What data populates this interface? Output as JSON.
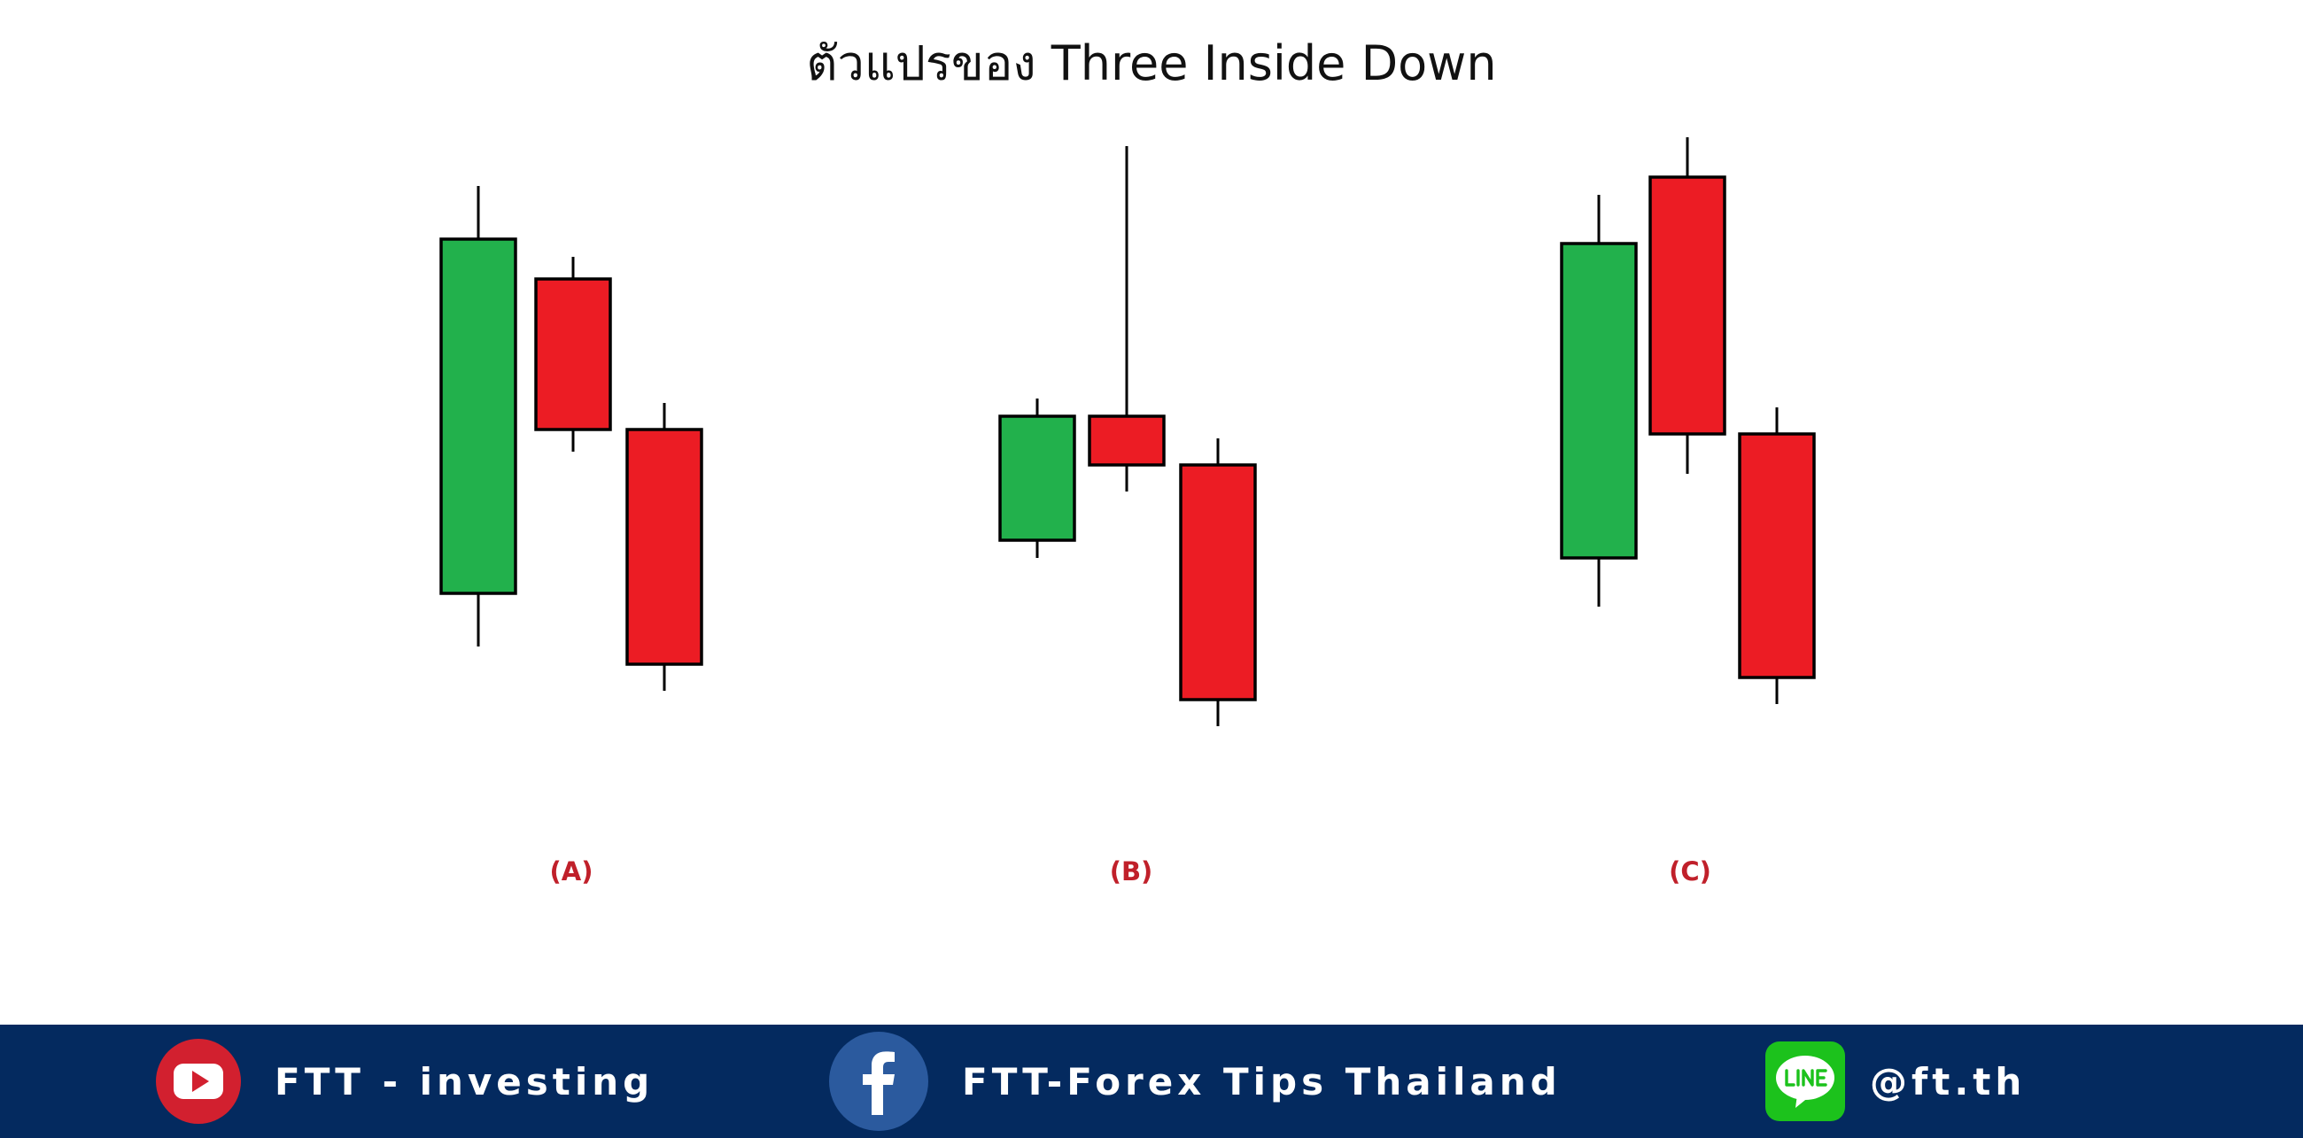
{
  "title": "ตัวแปรของ Three Inside Down",
  "chart_data": {
    "type": "candlestick",
    "title": "ตัวแปรของ Three Inside Down",
    "y_scale": "unlabeled",
    "grid": false,
    "colors": {
      "bullish": "#22b14c",
      "bearish": "#ec1c24",
      "wick": "#000000",
      "label": "#c0202a"
    },
    "groups": [
      {
        "label": "(A)",
        "candles": [
          {
            "direction": "bullish",
            "open": 20,
            "close": 100,
            "high": 112,
            "low": 8
          },
          {
            "direction": "bearish",
            "open": 91,
            "close": 57,
            "high": 96,
            "low": 52
          },
          {
            "direction": "bearish",
            "open": 57,
            "close": 4,
            "high": 63,
            "low": -2
          }
        ]
      },
      {
        "label": "(B)",
        "candles": [
          {
            "direction": "bullish",
            "open": 32,
            "close": 60,
            "high": 64,
            "low": 28
          },
          {
            "direction": "bearish",
            "open": 60,
            "close": 49,
            "high": 121,
            "low": 43
          },
          {
            "direction": "bearish",
            "open": 49,
            "close": -4,
            "high": 55,
            "low": -10
          }
        ]
      },
      {
        "label": "(C)",
        "candles": [
          {
            "direction": "bullish",
            "open": 28,
            "close": 99,
            "high": 110,
            "low": 17
          },
          {
            "direction": "bearish",
            "open": 114,
            "close": 56,
            "high": 123,
            "low": 47
          },
          {
            "direction": "bearish",
            "open": 56,
            "close": 1,
            "high": 62,
            "low": -5
          }
        ]
      }
    ]
  },
  "footer": {
    "background": "#042a5f",
    "youtube": {
      "icon": "youtube-icon",
      "label": "FTT - investing",
      "color": "#d2202f"
    },
    "facebook": {
      "icon": "facebook-icon",
      "label": "FTT-Forex Tips Thailand",
      "color": "#2b5a9e"
    },
    "line": {
      "icon": "line-icon",
      "label": "@ft.th",
      "color": "#1cc21c"
    }
  }
}
